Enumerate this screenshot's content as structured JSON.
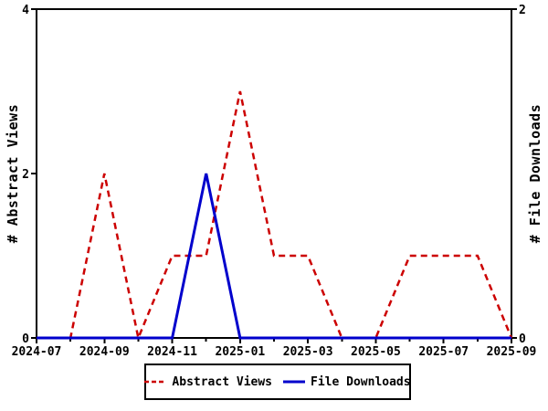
{
  "chart_data": {
    "type": "line",
    "title": "",
    "x": [
      "2024-07",
      "2024-08",
      "2024-09",
      "2024-10",
      "2024-11",
      "2024-12",
      "2025-01",
      "2025-02",
      "2025-03",
      "2025-04",
      "2025-05",
      "2025-06",
      "2025-07",
      "2025-08",
      "2025-09"
    ],
    "x_major_tick_labels": [
      "2024-07",
      "2024-09",
      "2024-11",
      "2025-01",
      "2025-03",
      "2025-05",
      "2025-07",
      "2025-09"
    ],
    "series": [
      {
        "name": "Abstract Views",
        "color": "#cc0000",
        "line_style": "dashed",
        "axis": "left",
        "values": [
          0,
          0,
          2,
          0,
          1,
          1,
          3,
          1,
          1,
          0,
          0,
          1,
          1,
          1,
          0
        ]
      },
      {
        "name": "File Downloads",
        "color": "#0000cc",
        "line_style": "solid",
        "axis": "right",
        "values": [
          0,
          0,
          0,
          0,
          0,
          1,
          0,
          0,
          0,
          0,
          0,
          0,
          0,
          0,
          0
        ]
      }
    ],
    "left_axis": {
      "label": "# Abstract Views",
      "range": [
        0,
        4
      ],
      "ticks": [
        0,
        2,
        4
      ]
    },
    "right_axis": {
      "label": "# File Downloads",
      "range": [
        0,
        2
      ],
      "ticks": [
        0,
        2
      ]
    },
    "legend_position": "bottom",
    "grid": false,
    "background_color": "#ffffff",
    "axis_color": "#000000"
  }
}
